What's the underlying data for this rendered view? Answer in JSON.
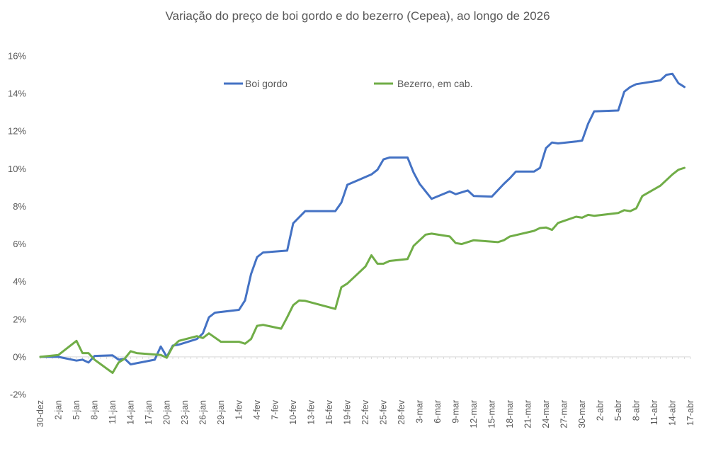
{
  "chart_data": {
    "type": "line",
    "title": "Variação do preço de boi gordo  e do bezerro (Cepea), ao longo de 2026",
    "xlabel": "",
    "ylabel": "",
    "ylim": [
      -0.02,
      0.16
    ],
    "yticks": [
      "-2%",
      "0%",
      "2%",
      "4%",
      "6%",
      "8%",
      "10%",
      "12%",
      "14%",
      "16%"
    ],
    "ytick_values": [
      -0.02,
      0,
      0.02,
      0.04,
      0.06,
      0.08,
      0.1,
      0.12,
      0.14,
      0.16
    ],
    "grid": false,
    "legend_position": "top-center",
    "x_domain": [
      0,
      108
    ],
    "xticks": [
      {
        "label": "30-dez",
        "x": 0
      },
      {
        "label": "2-jan",
        "x": 3
      },
      {
        "label": "5-jan",
        "x": 6
      },
      {
        "label": "8-jan",
        "x": 9
      },
      {
        "label": "11-jan",
        "x": 12
      },
      {
        "label": "14-jan",
        "x": 15
      },
      {
        "label": "17-jan",
        "x": 18
      },
      {
        "label": "20-jan",
        "x": 21
      },
      {
        "label": "23-jan",
        "x": 24
      },
      {
        "label": "26-jan",
        "x": 27
      },
      {
        "label": "29-jan",
        "x": 30
      },
      {
        "label": "1-fev",
        "x": 33
      },
      {
        "label": "4-fev",
        "x": 36
      },
      {
        "label": "7-fev",
        "x": 39
      },
      {
        "label": "10-fev",
        "x": 42
      },
      {
        "label": "13-fev",
        "x": 45
      },
      {
        "label": "16-fev",
        "x": 48
      },
      {
        "label": "19-fev",
        "x": 51
      },
      {
        "label": "22-fev",
        "x": 54
      },
      {
        "label": "25-fev",
        "x": 57
      },
      {
        "label": "28-fev",
        "x": 60
      },
      {
        "label": "3-mar",
        "x": 63
      },
      {
        "label": "6-mar",
        "x": 66
      },
      {
        "label": "9-mar",
        "x": 69
      },
      {
        "label": "12-mar",
        "x": 72
      },
      {
        "label": "15-mar",
        "x": 75
      },
      {
        "label": "18-mar",
        "x": 78
      },
      {
        "label": "21-mar",
        "x": 81
      },
      {
        "label": "24-mar",
        "x": 84
      },
      {
        "label": "27-mar",
        "x": 87
      },
      {
        "label": "30-mar",
        "x": 90
      },
      {
        "label": "2-abr",
        "x": 93
      },
      {
        "label": "5-abr",
        "x": 96
      },
      {
        "label": "8-abr",
        "x": 99
      },
      {
        "label": "11-abr",
        "x": 102
      },
      {
        "label": "14-abr",
        "x": 105
      },
      {
        "label": "17-abr",
        "x": 108
      }
    ],
    "series": [
      {
        "name": "Boi gordo",
        "color": "#4472c4",
        "points": [
          [
            0,
            0
          ],
          [
            1,
            0
          ],
          [
            2,
            0
          ],
          [
            3,
            0
          ],
          [
            6,
            -0.002
          ],
          [
            7,
            -0.0015
          ],
          [
            8,
            -0.003
          ],
          [
            9,
            0.0005
          ],
          [
            12,
            0.0008
          ],
          [
            13,
            -0.0015
          ],
          [
            14,
            -0.001
          ],
          [
            15,
            -0.004
          ],
          [
            19,
            -0.0015
          ],
          [
            20,
            0.0055
          ],
          [
            21,
            0
          ],
          [
            22,
            0.006
          ],
          [
            23,
            0.0065
          ],
          [
            26,
            0.0095
          ],
          [
            27,
            0.0125
          ],
          [
            28,
            0.021
          ],
          [
            29,
            0.0235
          ],
          [
            33,
            0.025
          ],
          [
            34,
            0.03
          ],
          [
            35,
            0.044
          ],
          [
            36,
            0.053
          ],
          [
            37,
            0.0555
          ],
          [
            41,
            0.0565
          ],
          [
            42,
            0.071
          ],
          [
            44,
            0.0775
          ],
          [
            49,
            0.0775
          ],
          [
            50,
            0.082
          ],
          [
            51,
            0.0915
          ],
          [
            55,
            0.097
          ],
          [
            56,
            0.0995
          ],
          [
            57,
            0.105
          ],
          [
            58,
            0.106
          ],
          [
            61,
            0.106
          ],
          [
            62,
            0.098
          ],
          [
            63,
            0.092
          ],
          [
            65,
            0.084
          ],
          [
            68,
            0.088
          ],
          [
            69,
            0.0865
          ],
          [
            71,
            0.0885
          ],
          [
            72,
            0.0855
          ],
          [
            75,
            0.0852
          ],
          [
            77,
            0.092
          ],
          [
            78,
            0.095
          ],
          [
            79,
            0.0985
          ],
          [
            82,
            0.0985
          ],
          [
            83,
            0.1005
          ],
          [
            84,
            0.111
          ],
          [
            85,
            0.114
          ],
          [
            86,
            0.1135
          ],
          [
            89,
            0.1145
          ],
          [
            90,
            0.115
          ],
          [
            91,
            0.124
          ],
          [
            92,
            0.1305
          ],
          [
            96,
            0.131
          ],
          [
            97,
            0.141
          ],
          [
            98,
            0.1435
          ],
          [
            99,
            0.145
          ],
          [
            103,
            0.147
          ],
          [
            104,
            0.15
          ],
          [
            105,
            0.1505
          ],
          [
            106,
            0.1455
          ],
          [
            107,
            0.1435
          ]
        ]
      },
      {
        "name": "Bezerro, em cab.",
        "color": "#70ad47",
        "points": [
          [
            0,
            0
          ],
          [
            3,
            0.001
          ],
          [
            6,
            0.0085
          ],
          [
            7,
            0.002
          ],
          [
            8,
            0.002
          ],
          [
            9,
            -0.0015
          ],
          [
            12,
            -0.0085
          ],
          [
            13,
            -0.003
          ],
          [
            14,
            -0.001
          ],
          [
            15,
            0.003
          ],
          [
            16,
            0.002
          ],
          [
            20,
            0.001
          ],
          [
            21,
            -0.0005
          ],
          [
            22,
            0.0055
          ],
          [
            23,
            0.0085
          ],
          [
            26,
            0.011
          ],
          [
            27,
            0.01
          ],
          [
            28,
            0.0125
          ],
          [
            30,
            0.008
          ],
          [
            33,
            0.008
          ],
          [
            34,
            0.007
          ],
          [
            35,
            0.0095
          ],
          [
            36,
            0.0165
          ],
          [
            37,
            0.017
          ],
          [
            40,
            0.015
          ],
          [
            41,
            0.021
          ],
          [
            42,
            0.0275
          ],
          [
            43,
            0.03
          ],
          [
            44,
            0.0298
          ],
          [
            49,
            0.0255
          ],
          [
            50,
            0.037
          ],
          [
            51,
            0.039
          ],
          [
            54,
            0.048
          ],
          [
            55,
            0.054
          ],
          [
            56,
            0.0495
          ],
          [
            57,
            0.0495
          ],
          [
            58,
            0.051
          ],
          [
            61,
            0.052
          ],
          [
            62,
            0.059
          ],
          [
            64,
            0.065
          ],
          [
            65,
            0.0655
          ],
          [
            68,
            0.064
          ],
          [
            69,
            0.0605
          ],
          [
            70,
            0.06
          ],
          [
            72,
            0.062
          ],
          [
            76,
            0.061
          ],
          [
            77,
            0.062
          ],
          [
            78,
            0.064
          ],
          [
            82,
            0.067
          ],
          [
            83,
            0.0685
          ],
          [
            84,
            0.0688
          ],
          [
            85,
            0.0675
          ],
          [
            86,
            0.0712
          ],
          [
            89,
            0.0745
          ],
          [
            90,
            0.074
          ],
          [
            91,
            0.0755
          ],
          [
            92,
            0.075
          ],
          [
            96,
            0.0765
          ],
          [
            97,
            0.078
          ],
          [
            98,
            0.0775
          ],
          [
            99,
            0.079
          ],
          [
            100,
            0.0855
          ],
          [
            103,
            0.091
          ],
          [
            104,
            0.094
          ],
          [
            105,
            0.097
          ],
          [
            106,
            0.0995
          ],
          [
            107,
            0.1005
          ]
        ]
      }
    ]
  }
}
